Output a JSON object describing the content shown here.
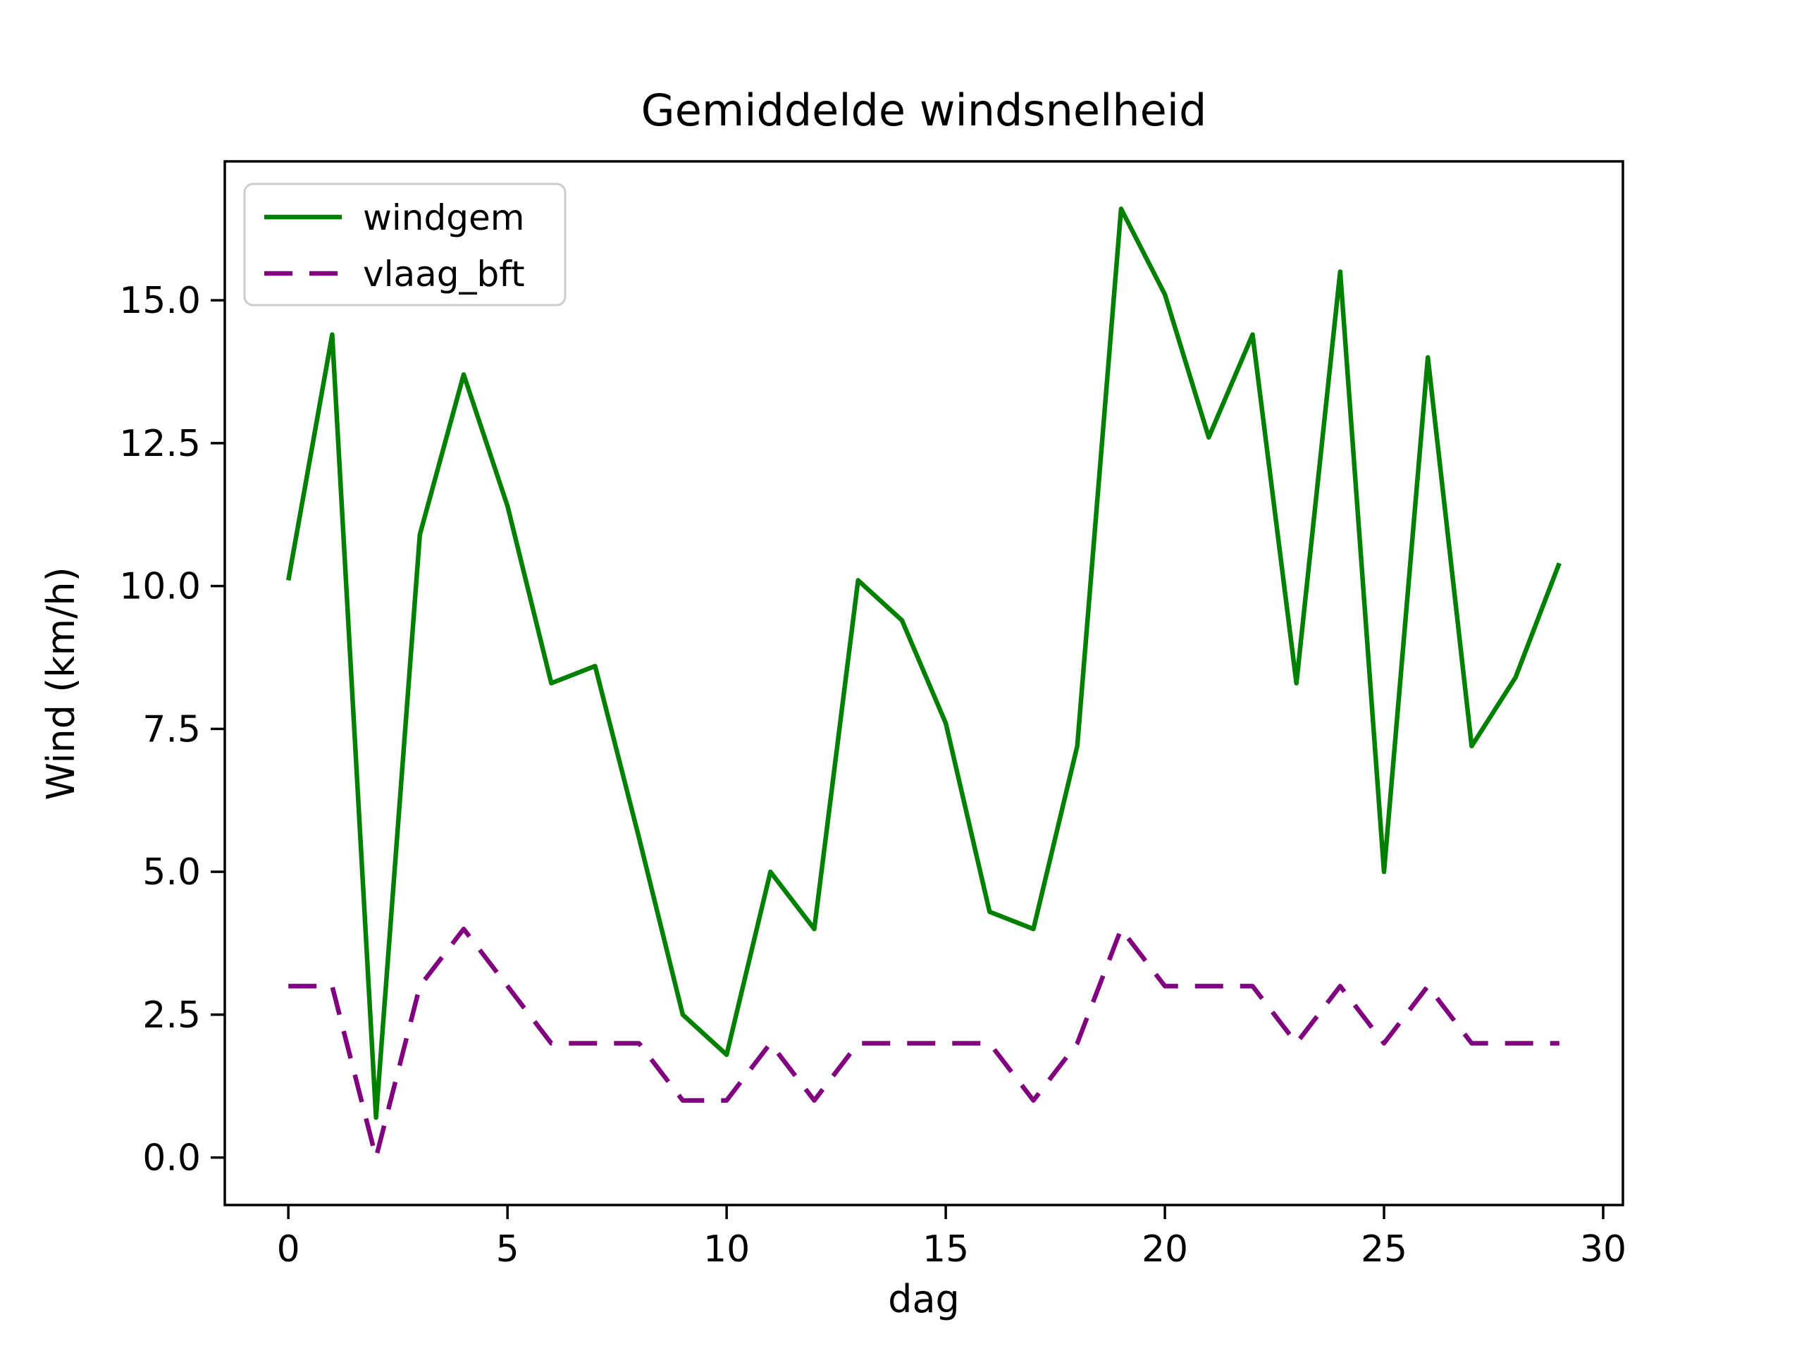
{
  "chart_data": {
    "type": "line",
    "title": "Gemiddelde windsnelheid",
    "xlabel": "dag",
    "ylabel": "Wind (km/h)",
    "x": [
      0,
      1,
      2,
      3,
      4,
      5,
      6,
      7,
      8,
      9,
      10,
      11,
      12,
      13,
      14,
      15,
      16,
      17,
      18,
      19,
      20,
      21,
      22,
      23,
      24,
      25,
      26,
      27,
      28,
      29
    ],
    "series": [
      {
        "name": "windgem",
        "color": "#008000",
        "style": "solid",
        "values": [
          10.1,
          14.4,
          0.7,
          10.9,
          13.7,
          11.4,
          8.3,
          8.6,
          5.6,
          2.5,
          1.8,
          5.0,
          4.0,
          10.1,
          9.4,
          7.6,
          4.3,
          4.0,
          7.2,
          16.6,
          15.1,
          12.6,
          14.4,
          8.3,
          15.5,
          5.0,
          14.0,
          7.2,
          8.4,
          10.4
        ]
      },
      {
        "name": "vlaag_bft",
        "color": "#800080",
        "style": "dashed",
        "values": [
          3,
          3,
          0,
          3,
          4,
          3,
          2,
          2,
          2,
          1,
          1,
          2,
          1,
          2,
          2,
          2,
          2,
          1,
          2,
          4,
          3,
          3,
          3,
          2,
          3,
          2,
          3,
          2,
          2,
          2
        ]
      }
    ],
    "xticks": [
      0,
      5,
      10,
      15,
      20,
      25,
      30
    ],
    "xticklabels": [
      "0",
      "5",
      "10",
      "15",
      "20",
      "25",
      "30"
    ],
    "yticks": [
      0,
      2.5,
      5,
      7.5,
      10,
      12.5,
      15
    ],
    "yticklabels": [
      "0.0",
      "2.5",
      "5.0",
      "7.5",
      "10.0",
      "12.5",
      "15.0"
    ],
    "xlim": [
      -1.45,
      30.45
    ],
    "ylim": [
      -0.83,
      17.43
    ],
    "grid": false,
    "legend_position": "upper left",
    "axis_color": "#000000",
    "background": "#ffffff"
  }
}
